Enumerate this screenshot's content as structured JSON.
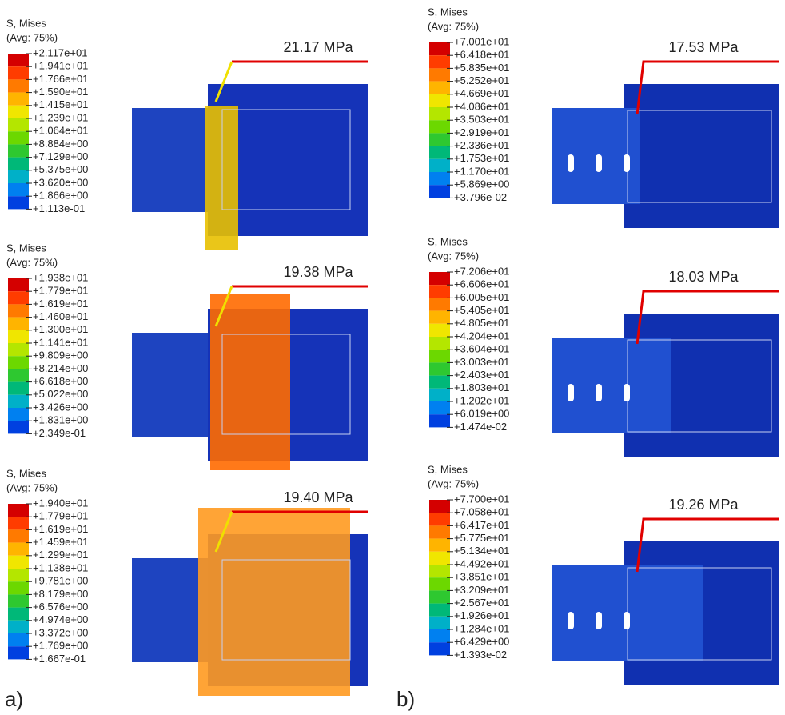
{
  "panels": [
    {
      "legend_title": "S, Mises",
      "averaging": "(Avg: 75%)",
      "annotation": "21.17 MPa",
      "labels": [
        "+2.117e+01",
        "+1.941e+01",
        "+1.766e+01",
        "+1.590e+01",
        "+1.415e+01",
        "+1.239e+01",
        "+1.064e+01",
        "+8.884e+00",
        "+7.129e+00",
        "+5.375e+00",
        "+3.620e+00",
        "+1.866e+00",
        "+1.113e-01"
      ]
    },
    {
      "legend_title": "S, Mises",
      "averaging": "(Avg: 75%)",
      "annotation": "19.38 MPa",
      "labels": [
        "+1.938e+01",
        "+1.779e+01",
        "+1.619e+01",
        "+1.460e+01",
        "+1.300e+01",
        "+1.141e+01",
        "+9.809e+00",
        "+8.214e+00",
        "+6.618e+00",
        "+5.022e+00",
        "+3.426e+00",
        "+1.831e+00",
        "+2.349e-01"
      ]
    },
    {
      "legend_title": "S, Mises",
      "averaging": "(Avg: 75%)",
      "annotation": "19.40 MPa",
      "labels": [
        "+1.940e+01",
        "+1.779e+01",
        "+1.619e+01",
        "+1.459e+01",
        "+1.299e+01",
        "+1.138e+01",
        "+9.781e+00",
        "+8.179e+00",
        "+6.576e+00",
        "+4.974e+00",
        "+3.372e+00",
        "+1.769e+00",
        "+1.667e-01"
      ]
    },
    {
      "legend_title": "S, Mises",
      "averaging": "(Avg: 75%)",
      "annotation": "17.53 MPa",
      "labels": [
        "+7.001e+01",
        "+6.418e+01",
        "+5.835e+01",
        "+5.252e+01",
        "+4.669e+01",
        "+4.086e+01",
        "+3.503e+01",
        "+2.919e+01",
        "+2.336e+01",
        "+1.753e+01",
        "+1.170e+01",
        "+5.869e+00",
        "+3.796e-02"
      ]
    },
    {
      "legend_title": "S, Mises",
      "averaging": "(Avg: 75%)",
      "annotation": "18.03 MPa",
      "labels": [
        "+7.206e+01",
        "+6.606e+01",
        "+6.005e+01",
        "+5.405e+01",
        "+4.805e+01",
        "+4.204e+01",
        "+3.604e+01",
        "+3.003e+01",
        "+2.403e+01",
        "+1.803e+01",
        "+1.202e+01",
        "+6.019e+00",
        "+1.474e-02"
      ]
    },
    {
      "legend_title": "S, Mises",
      "averaging": "(Avg: 75%)",
      "annotation": "19.26 MPa",
      "labels": [
        "+7.700e+01",
        "+7.058e+01",
        "+6.417e+01",
        "+5.775e+01",
        "+5.134e+01",
        "+4.492e+01",
        "+3.851e+01",
        "+3.209e+01",
        "+2.567e+01",
        "+1.926e+01",
        "+1.284e+01",
        "+6.429e+00",
        "+1.393e-02"
      ]
    }
  ],
  "captions": [
    "a)",
    "b)"
  ]
}
